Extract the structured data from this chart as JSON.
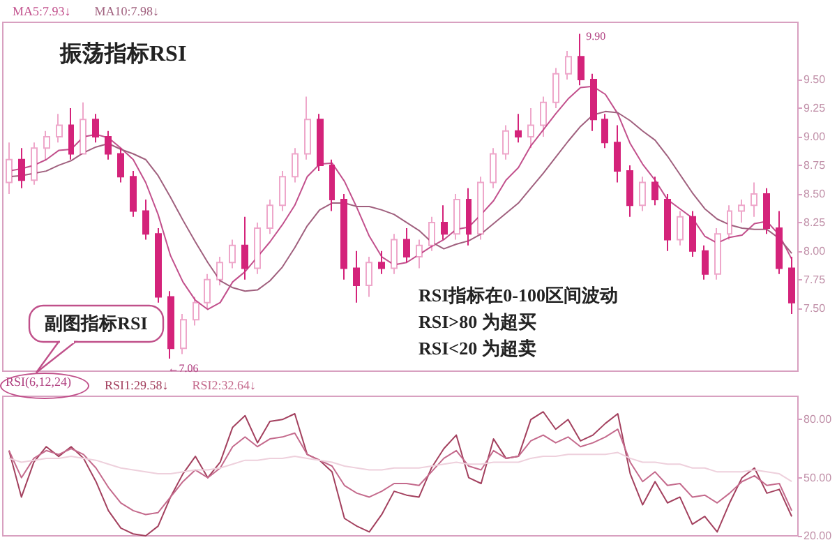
{
  "chart_data": [
    {
      "type": "candlestick",
      "title": "振荡指标RSI",
      "categories": [
        null,
        null,
        null,
        null,
        null,
        null,
        null,
        null,
        null,
        null,
        null,
        null,
        null,
        null,
        null,
        null,
        null,
        null,
        null,
        null,
        null,
        null,
        null,
        null,
        null,
        null,
        null,
        null,
        null,
        null,
        null,
        null,
        null,
        null,
        null,
        null,
        null,
        null,
        null,
        null,
        null,
        null,
        null,
        null,
        null,
        null,
        null,
        null,
        null,
        null,
        null,
        null,
        null,
        null,
        null,
        null,
        null,
        null,
        null,
        null,
        null,
        null,
        null,
        null
      ],
      "ohlc": [
        [
          8.6,
          8.95,
          8.5,
          8.8
        ],
        [
          8.8,
          8.9,
          8.55,
          8.62
        ],
        [
          8.62,
          8.95,
          8.58,
          8.9
        ],
        [
          8.9,
          9.05,
          8.8,
          9.0
        ],
        [
          9.0,
          9.2,
          8.95,
          9.1
        ],
        [
          9.1,
          9.25,
          8.8,
          8.85
        ],
        [
          8.85,
          9.3,
          8.85,
          9.15
        ],
        [
          9.15,
          9.2,
          8.95,
          9.0
        ],
        [
          9.0,
          9.05,
          8.8,
          8.85
        ],
        [
          8.85,
          8.9,
          8.6,
          8.65
        ],
        [
          8.65,
          8.7,
          8.3,
          8.35
        ],
        [
          8.35,
          8.45,
          8.1,
          8.15
        ],
        [
          8.15,
          8.2,
          7.55,
          7.6
        ],
        [
          7.6,
          7.65,
          7.06,
          7.15
        ],
        [
          7.15,
          7.45,
          7.1,
          7.4
        ],
        [
          7.4,
          7.6,
          7.35,
          7.55
        ],
        [
          7.55,
          7.8,
          7.5,
          7.75
        ],
        [
          7.75,
          7.95,
          7.7,
          7.9
        ],
        [
          7.9,
          8.1,
          7.85,
          8.05
        ],
        [
          8.05,
          8.3,
          7.75,
          7.85
        ],
        [
          7.85,
          8.25,
          7.8,
          8.2
        ],
        [
          8.2,
          8.45,
          8.15,
          8.4
        ],
        [
          8.4,
          8.7,
          8.35,
          8.65
        ],
        [
          8.65,
          8.9,
          8.6,
          8.85
        ],
        [
          8.85,
          9.35,
          8.8,
          9.15
        ],
        [
          9.15,
          9.2,
          8.7,
          8.75
        ],
        [
          8.75,
          8.8,
          8.35,
          8.45
        ],
        [
          8.45,
          8.5,
          7.75,
          7.85
        ],
        [
          7.85,
          8.0,
          7.55,
          7.7
        ],
        [
          7.7,
          7.95,
          7.6,
          7.9
        ],
        [
          7.9,
          8.0,
          7.8,
          7.85
        ],
        [
          7.85,
          8.15,
          7.8,
          8.1
        ],
        [
          8.1,
          8.2,
          7.9,
          7.95
        ],
        [
          7.95,
          8.1,
          7.85,
          8.05
        ],
        [
          8.05,
          8.3,
          8.0,
          8.25
        ],
        [
          8.25,
          8.4,
          8.1,
          8.15
        ],
        [
          8.15,
          8.5,
          8.1,
          8.45
        ],
        [
          8.45,
          8.55,
          8.05,
          8.15
        ],
        [
          8.15,
          8.65,
          8.1,
          8.6
        ],
        [
          8.6,
          8.9,
          8.55,
          8.85
        ],
        [
          8.85,
          9.1,
          8.8,
          9.05
        ],
        [
          9.05,
          9.2,
          8.95,
          9.0
        ],
        [
          9.0,
          9.25,
          8.9,
          9.1
        ],
        [
          9.1,
          9.35,
          9.0,
          9.3
        ],
        [
          9.3,
          9.6,
          9.25,
          9.55
        ],
        [
          9.55,
          9.75,
          9.5,
          9.7
        ],
        [
          9.7,
          9.9,
          9.45,
          9.5
        ],
        [
          9.5,
          9.55,
          9.05,
          9.15
        ],
        [
          9.15,
          9.2,
          8.9,
          8.95
        ],
        [
          8.95,
          9.1,
          8.6,
          8.7
        ],
        [
          8.7,
          8.75,
          8.3,
          8.4
        ],
        [
          8.4,
          8.65,
          8.35,
          8.6
        ],
        [
          8.6,
          8.65,
          8.4,
          8.45
        ],
        [
          8.45,
          8.5,
          8.0,
          8.1
        ],
        [
          8.1,
          8.35,
          8.05,
          8.3
        ],
        [
          8.3,
          8.35,
          7.95,
          8.0
        ],
        [
          8.0,
          8.05,
          7.75,
          7.8
        ],
        [
          7.8,
          8.2,
          7.75,
          8.15
        ],
        [
          8.15,
          8.4,
          8.1,
          8.35
        ],
        [
          8.35,
          8.45,
          8.25,
          8.4
        ],
        [
          8.4,
          8.6,
          8.3,
          8.5
        ],
        [
          8.5,
          8.55,
          8.15,
          8.2
        ],
        [
          8.2,
          8.35,
          7.8,
          7.85
        ],
        [
          7.85,
          7.95,
          7.45,
          7.55
        ]
      ],
      "color": "#d4237a",
      "series": [
        {
          "type": "line",
          "name": "MA5:7.93↓",
          "color": "#c2508c",
          "values": [
            8.7,
            8.72,
            8.75,
            8.8,
            8.88,
            8.89,
            9.0,
            9.02,
            8.99,
            8.9,
            8.8,
            8.6,
            8.32,
            7.96,
            7.73,
            7.57,
            7.49,
            7.55,
            7.73,
            7.82,
            7.95,
            8.08,
            8.23,
            8.4,
            8.65,
            8.76,
            8.77,
            8.61,
            8.38,
            8.13,
            7.95,
            7.88,
            7.9,
            7.97,
            8.04,
            8.1,
            8.19,
            8.21,
            8.32,
            8.44,
            8.62,
            8.73,
            8.92,
            9.06,
            9.2,
            9.33,
            9.43,
            9.44,
            9.37,
            9.2,
            8.94,
            8.76,
            8.62,
            8.45,
            8.37,
            8.29,
            8.13,
            8.07,
            8.12,
            8.14,
            8.24,
            8.26,
            8.14,
            7.93
          ]
        },
        {
          "type": "line",
          "name": "MA10:7.98↓",
          "color": "#a0607e",
          "values": [
            8.65,
            8.66,
            8.68,
            8.7,
            8.75,
            8.79,
            8.86,
            8.91,
            8.94,
            8.89,
            8.85,
            8.8,
            8.66,
            8.47,
            8.27,
            8.08,
            7.9,
            7.74,
            7.68,
            7.65,
            7.66,
            7.74,
            7.86,
            8.03,
            8.22,
            8.36,
            8.42,
            8.42,
            8.39,
            8.39,
            8.36,
            8.32,
            8.25,
            8.18,
            8.08,
            8.02,
            8.06,
            8.09,
            8.15,
            8.24,
            8.33,
            8.42,
            8.55,
            8.68,
            8.82,
            8.96,
            9.09,
            9.19,
            9.22,
            9.21,
            9.14,
            9.05,
            8.97,
            8.83,
            8.67,
            8.51,
            8.37,
            8.28,
            8.23,
            8.2,
            8.19,
            8.19,
            8.11,
            7.98
          ]
        }
      ],
      "ylim": [
        6.95,
        10.0
      ],
      "yticks": [
        {
          "value": 7.5,
          "label": "7.50"
        },
        {
          "value": 7.75,
          "label": "7.75"
        },
        {
          "value": 8,
          "label": "8.00"
        },
        {
          "value": 8.25,
          "label": "8.25"
        },
        {
          "value": 8.5,
          "label": "8.50"
        },
        {
          "value": 8.75,
          "label": "8.75"
        },
        {
          "value": 9,
          "label": "9.00"
        },
        {
          "value": 9.25,
          "label": "9.25"
        },
        {
          "value": 9.5,
          "label": "9.50"
        }
      ],
      "tick_labels": "y",
      "legend": "top left",
      "annotations": [
        "RSI指标在0-100区间波动",
        "RSI>80 为超买",
        "RSI<20 为超卖",
        "副图指标RSI",
        "9.90",
        "←7.06"
      ]
    },
    {
      "type": "line",
      "legend_title": "RSI(6,12,24)",
      "categories": [
        null,
        null,
        null,
        null,
        null,
        null,
        null,
        null,
        null,
        null,
        null,
        null,
        null,
        null,
        null,
        null,
        null,
        null,
        null,
        null,
        null,
        null,
        null,
        null,
        null,
        null,
        null,
        null,
        null,
        null,
        null,
        null,
        null,
        null,
        null,
        null,
        null,
        null,
        null,
        null,
        null,
        null,
        null,
        null,
        null,
        null,
        null,
        null,
        null,
        null,
        null,
        null,
        null,
        null,
        null,
        null,
        null,
        null,
        null,
        null,
        null,
        null,
        null,
        null
      ],
      "series": [
        {
          "name": "RSI1:29.58↓",
          "color": "#a3405e",
          "values": [
            64,
            40,
            58,
            66,
            61,
            66,
            60,
            48,
            33,
            24,
            21,
            20,
            25,
            40,
            52,
            61,
            50,
            58,
            76,
            82,
            68,
            79,
            80,
            83,
            62,
            59,
            53,
            29,
            25,
            22,
            31,
            43,
            41,
            40,
            55,
            65,
            72,
            50,
            47,
            70,
            60,
            61,
            80,
            84,
            75,
            80,
            69,
            72,
            78,
            83,
            52,
            36,
            48,
            37,
            40,
            26,
            30,
            22,
            37,
            50,
            55,
            42,
            44,
            30
          ]
        },
        {
          "name": "RSI2:32.64↓",
          "color": "#c46a8c",
          "values": [
            64,
            50,
            60,
            64,
            62,
            65,
            62,
            55,
            45,
            37,
            33,
            31,
            32,
            40,
            48,
            54,
            50,
            55,
            66,
            71,
            66,
            70,
            71,
            73,
            62,
            59,
            56,
            46,
            42,
            40,
            43,
            47,
            47,
            46,
            53,
            60,
            64,
            56,
            54,
            64,
            60,
            61,
            69,
            72,
            68,
            71,
            66,
            68,
            71,
            75,
            58,
            48,
            53,
            46,
            47,
            40,
            41,
            37,
            42,
            48,
            51,
            46,
            47,
            33
          ]
        },
        {
          "color": "#eed0dc",
          "values": [
            60,
            58,
            59,
            60,
            60,
            61,
            60,
            59,
            57,
            55,
            54,
            53,
            52,
            52,
            53,
            54,
            54,
            55,
            57,
            59,
            59,
            60,
            60,
            61,
            60,
            59,
            58,
            56,
            55,
            54,
            54,
            55,
            55,
            55,
            56,
            57,
            58,
            57,
            57,
            58,
            58,
            58,
            60,
            61,
            61,
            62,
            62,
            62,
            62,
            63,
            60,
            58,
            58,
            57,
            57,
            55,
            55,
            53,
            53,
            53,
            54,
            53,
            52,
            48
          ]
        }
      ],
      "ylim": [
        20,
        92
      ],
      "yticks": [
        {
          "value": 20,
          "label": "20.00"
        },
        {
          "value": 50,
          "label": "50.00"
        },
        {
          "value": 80,
          "label": "80.00"
        }
      ],
      "tick_labels": "y",
      "legend": "top left",
      "line_style": "solid"
    }
  ]
}
